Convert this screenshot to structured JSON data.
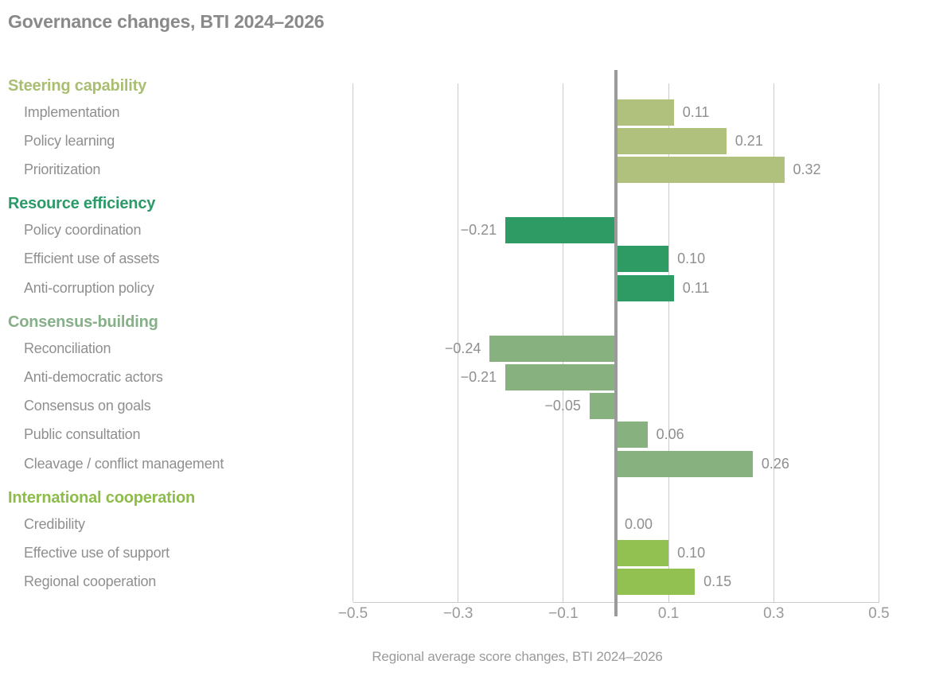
{
  "title": "Governance changes, BTI 2024–2026",
  "chart_data": {
    "type": "bar",
    "orientation": "horizontal",
    "title": "Governance changes, BTI 2024–2026",
    "xlabel": "Regional average score changes, BTI 2024–2026",
    "xlim": [
      -0.5,
      0.5
    ],
    "x_ticks": [
      -0.5,
      -0.3,
      -0.1,
      0.1,
      0.3,
      0.5
    ],
    "x_tick_labels": [
      "−0.5",
      "−0.3",
      "−0.1",
      "0.1",
      "0.3",
      "0.5"
    ],
    "grid": true,
    "zero_axis": true,
    "groups": [
      {
        "label": "Steering capability",
        "header_color": "#aabe72",
        "bar_color": "#b0c17e",
        "items": [
          {
            "label": "Implementation",
            "value": 0.11,
            "value_label": "0.11"
          },
          {
            "label": "Policy learning",
            "value": 0.21,
            "value_label": "0.21"
          },
          {
            "label": "Prioritization",
            "value": 0.32,
            "value_label": "0.32"
          }
        ]
      },
      {
        "label": "Resource efficiency",
        "header_color": "#2b9a68",
        "bar_color": "#2e9b64",
        "items": [
          {
            "label": "Policy coordination",
            "value": -0.21,
            "value_label": "−0.21"
          },
          {
            "label": "Efficient use of assets",
            "value": 0.1,
            "value_label": "0.10"
          },
          {
            "label": "Anti-corruption policy",
            "value": 0.11,
            "value_label": "0.11"
          }
        ]
      },
      {
        "label": "Consensus-building",
        "header_color": "#85b088",
        "bar_color": "#87b280",
        "items": [
          {
            "label": "Reconciliation",
            "value": -0.24,
            "value_label": "−0.24"
          },
          {
            "label": "Anti-democratic actors",
            "value": -0.21,
            "value_label": "−0.21"
          },
          {
            "label": "Consensus on goals",
            "value": -0.05,
            "value_label": "−0.05"
          },
          {
            "label": "Public consultation",
            "value": 0.06,
            "value_label": "0.06"
          },
          {
            "label": "Cleavage / conflict management",
            "value": 0.26,
            "value_label": "0.26"
          }
        ]
      },
      {
        "label": "International cooperation",
        "header_color": "#8ebc49",
        "bar_color": "#92c151",
        "items": [
          {
            "label": "Credibility",
            "value": 0.0,
            "value_label": "0.00"
          },
          {
            "label": "Effective use of support",
            "value": 0.1,
            "value_label": "0.10"
          },
          {
            "label": "Regional cooperation",
            "value": 0.15,
            "value_label": "0.15"
          }
        ]
      }
    ]
  },
  "colors": {
    "gridline": "#cbcbcb",
    "zero_line": "#9a9a9a",
    "title_text": "#898989",
    "label_text": "#8f8f8f",
    "tick_text": "#9a9a9a"
  }
}
